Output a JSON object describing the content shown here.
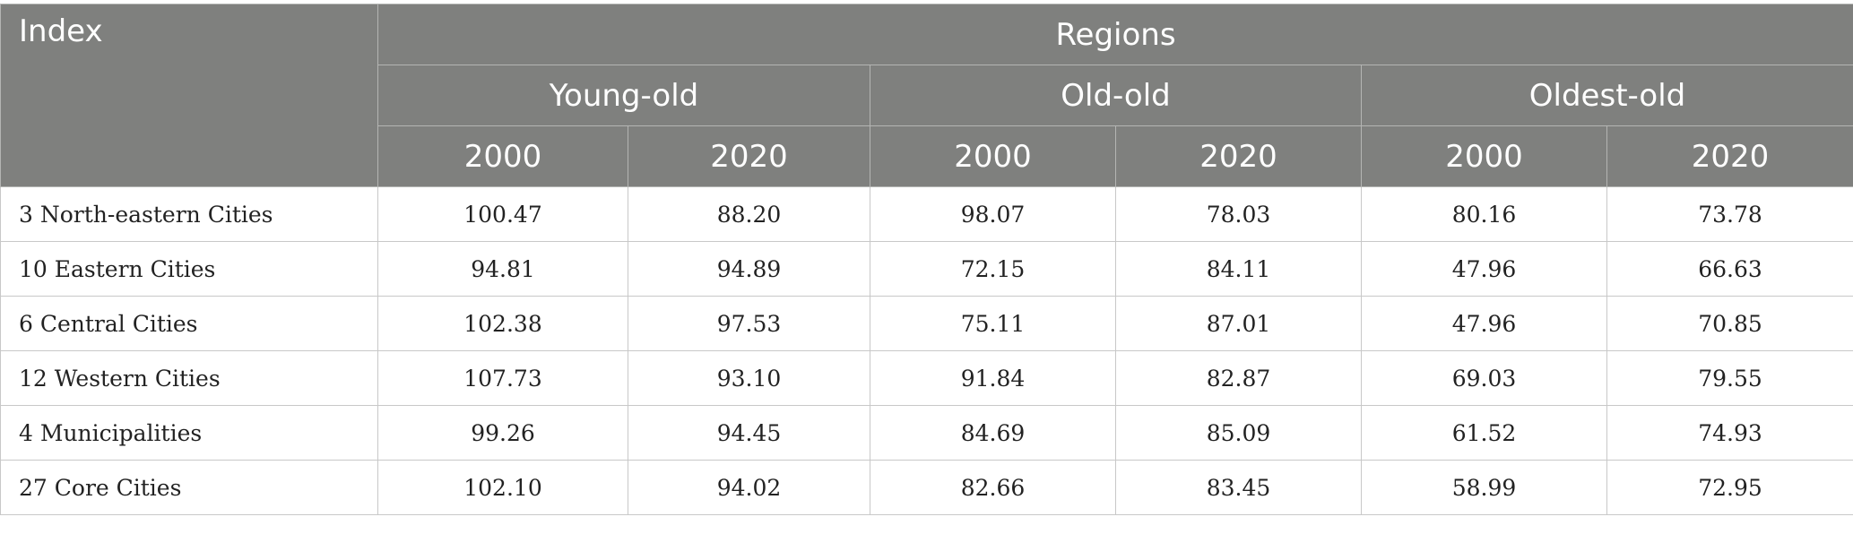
{
  "table": {
    "index_header": "Index",
    "group_header": "Regions",
    "age_groups": [
      "Young-old",
      "Old-old",
      "Oldest-old"
    ],
    "years": [
      "2000",
      "2020",
      "2000",
      "2020",
      "2000",
      "2020"
    ],
    "rows": [
      {
        "label": "3 North-eastern Cities",
        "values": [
          "100.47",
          "88.20",
          "98.07",
          "78.03",
          "80.16",
          "73.78"
        ]
      },
      {
        "label": "10 Eastern Cities",
        "values": [
          "94.81",
          "94.89",
          "72.15",
          "84.11",
          "47.96",
          "66.63"
        ]
      },
      {
        "label": "6 Central Cities",
        "values": [
          "102.38",
          "97.53",
          "75.11",
          "87.01",
          "47.96",
          "70.85"
        ]
      },
      {
        "label": "12 Western Cities",
        "values": [
          "107.73",
          "93.10",
          "91.84",
          "82.87",
          "69.03",
          "79.55"
        ]
      },
      {
        "label": "4 Municipalities",
        "values": [
          "99.26",
          "94.45",
          "84.69",
          "85.09",
          "61.52",
          "74.93"
        ]
      },
      {
        "label": "27 Core Cities",
        "values": [
          "102.10",
          "94.02",
          "82.66",
          "83.45",
          "58.99",
          "72.95"
        ]
      }
    ]
  }
}
